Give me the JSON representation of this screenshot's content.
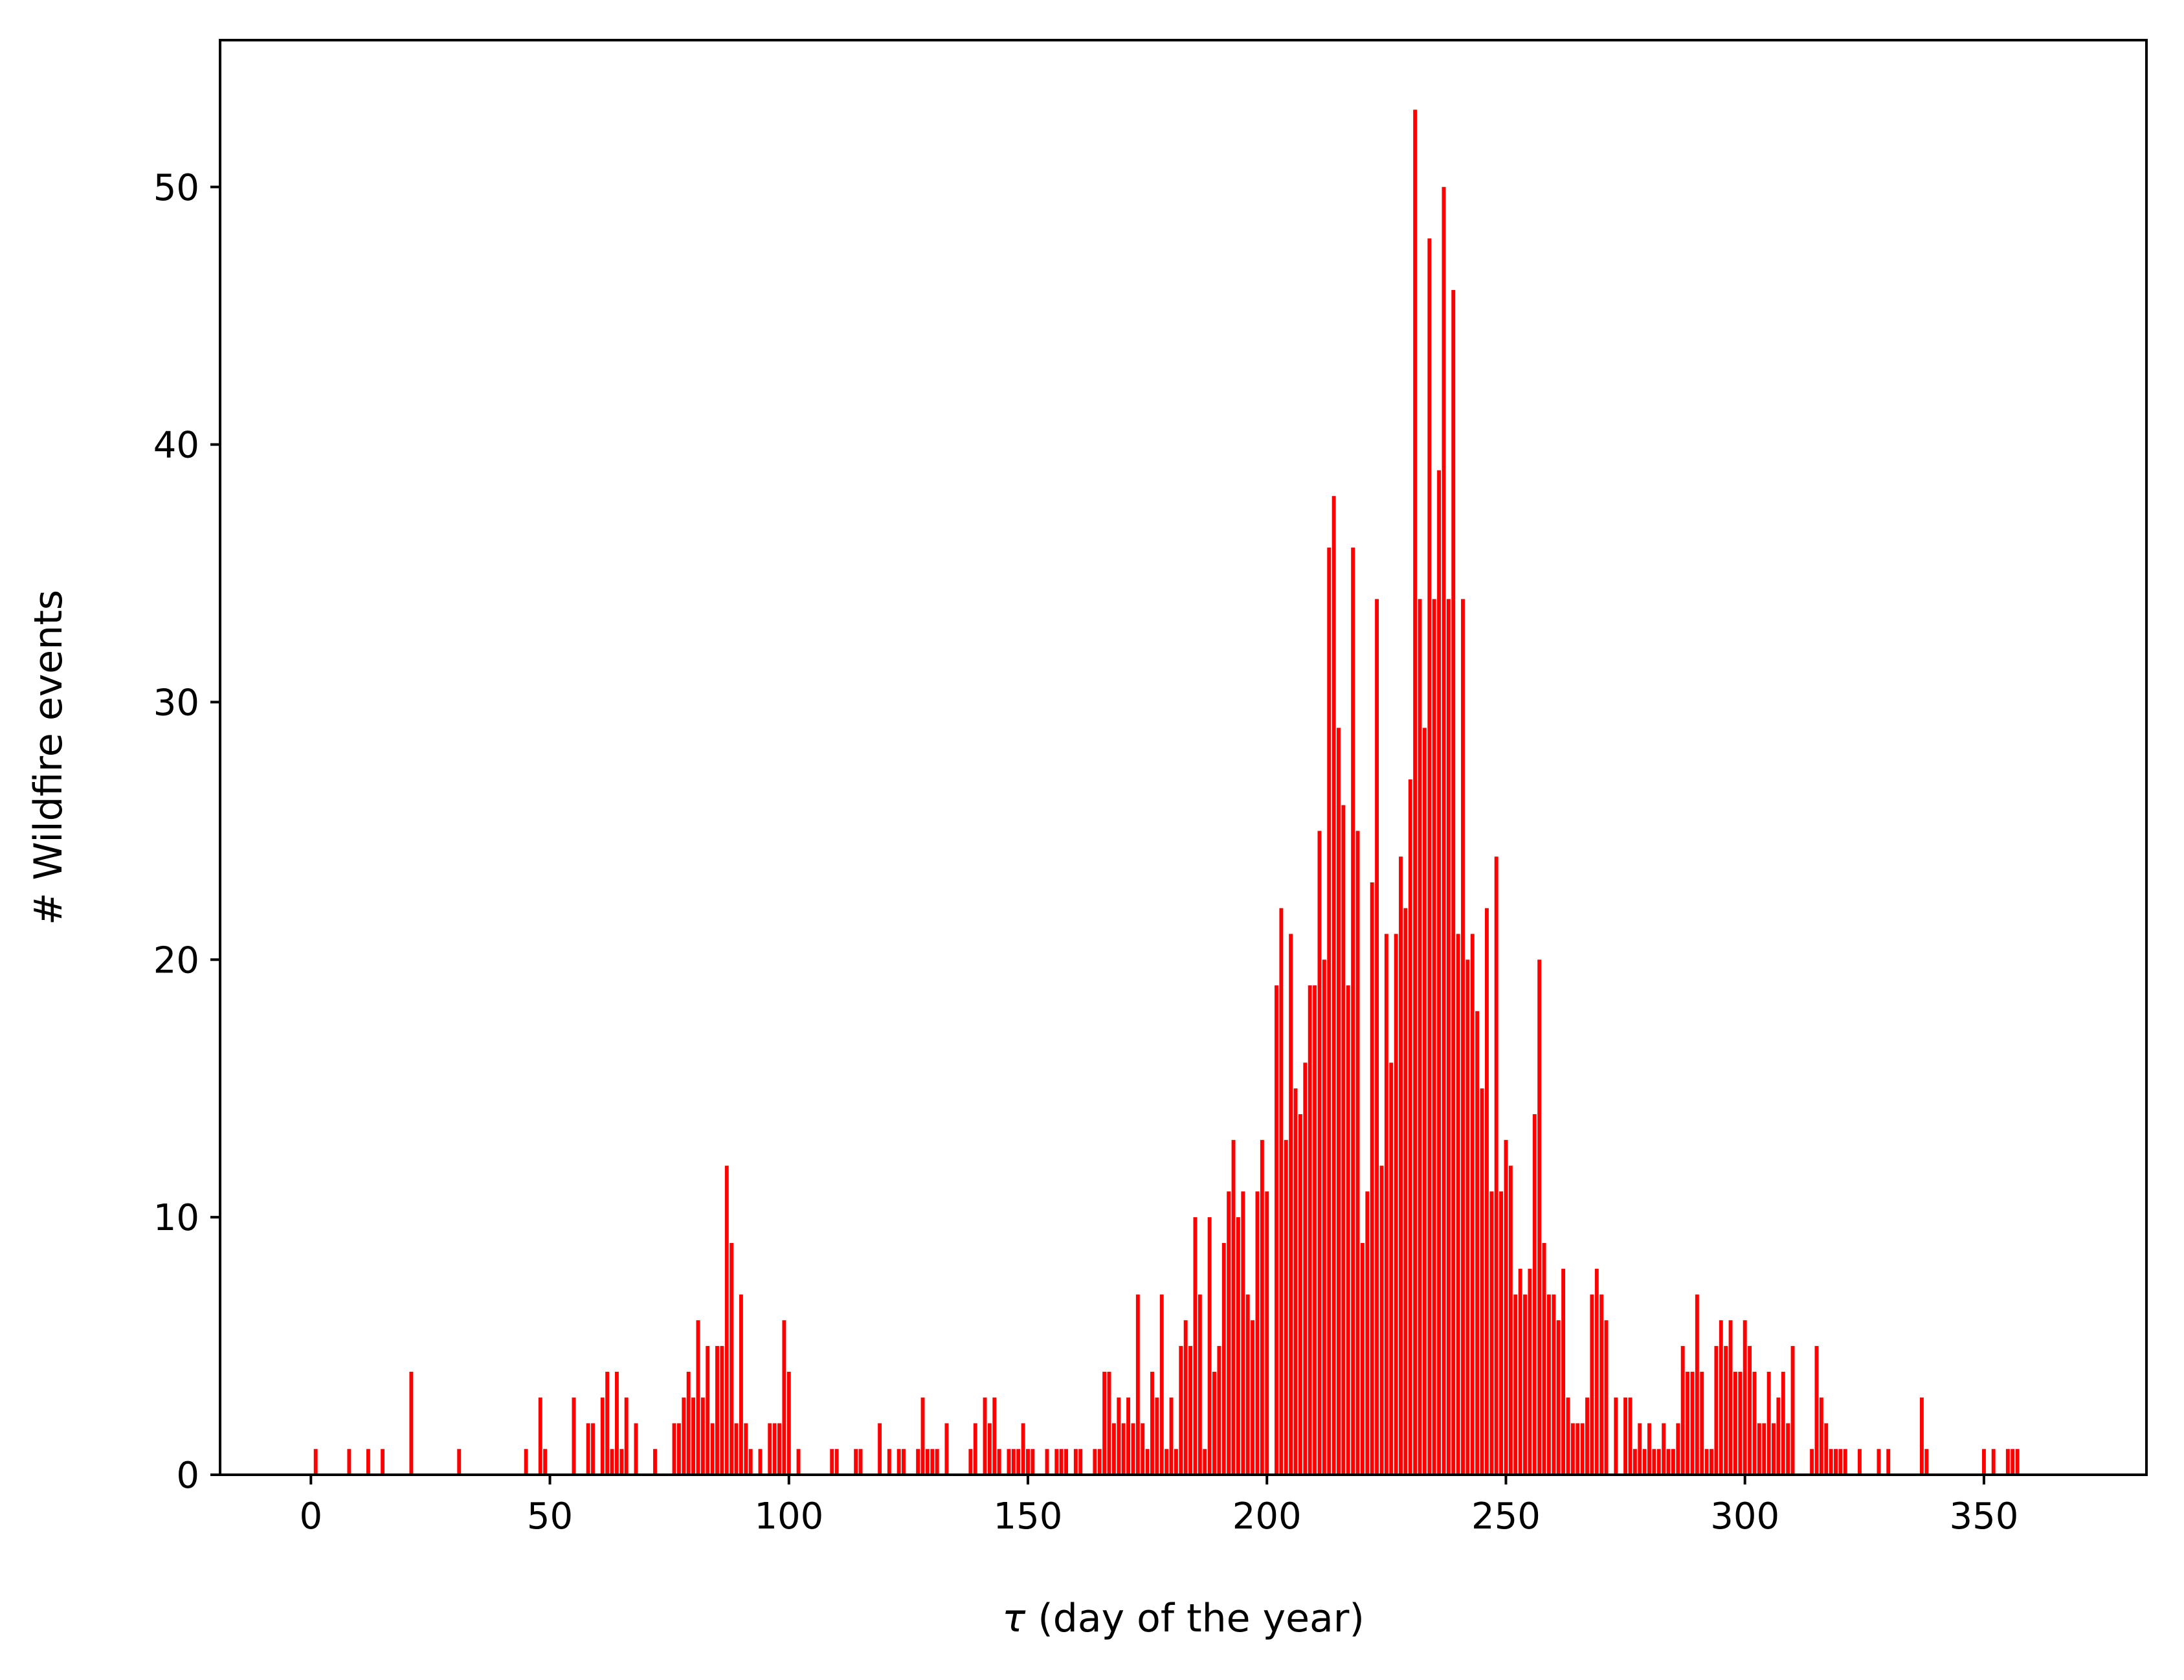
{
  "colors": {
    "bar": "#ff0000",
    "axes": "#000000",
    "background": "#ffffff"
  },
  "chart_data": {
    "type": "bar",
    "title": "",
    "xlabel_symbol": "τ",
    "xlabel_text": " (day of the year)",
    "ylabel": "# Wildfire events",
    "xlim": [
      -19,
      384
    ],
    "ylim": [
      0,
      55.7
    ],
    "xticks": [
      0,
      50,
      100,
      150,
      200,
      250,
      300,
      350
    ],
    "yticks": [
      0,
      10,
      20,
      30,
      40,
      50
    ],
    "grid": false,
    "legend": "none",
    "points": [
      [
        1,
        1
      ],
      [
        8,
        1
      ],
      [
        12,
        1
      ],
      [
        15,
        1
      ],
      [
        21,
        4
      ],
      [
        31,
        1
      ],
      [
        45,
        1
      ],
      [
        48,
        3
      ],
      [
        49,
        1
      ],
      [
        55,
        3
      ],
      [
        58,
        2
      ],
      [
        59,
        2
      ],
      [
        61,
        3
      ],
      [
        62,
        4
      ],
      [
        63,
        1
      ],
      [
        64,
        4
      ],
      [
        65,
        1
      ],
      [
        66,
        3
      ],
      [
        68,
        2
      ],
      [
        72,
        1
      ],
      [
        76,
        2
      ],
      [
        77,
        2
      ],
      [
        78,
        3
      ],
      [
        79,
        4
      ],
      [
        80,
        3
      ],
      [
        81,
        6
      ],
      [
        82,
        3
      ],
      [
        83,
        5
      ],
      [
        84,
        2
      ],
      [
        85,
        5
      ],
      [
        86,
        5
      ],
      [
        87,
        12
      ],
      [
        88,
        9
      ],
      [
        89,
        2
      ],
      [
        90,
        7
      ],
      [
        91,
        2
      ],
      [
        92,
        1
      ],
      [
        94,
        1
      ],
      [
        96,
        2
      ],
      [
        97,
        2
      ],
      [
        98,
        2
      ],
      [
        99,
        6
      ],
      [
        100,
        4
      ],
      [
        102,
        1
      ],
      [
        109,
        1
      ],
      [
        110,
        1
      ],
      [
        114,
        1
      ],
      [
        115,
        1
      ],
      [
        119,
        2
      ],
      [
        121,
        1
      ],
      [
        123,
        1
      ],
      [
        124,
        1
      ],
      [
        127,
        1
      ],
      [
        128,
        3
      ],
      [
        129,
        1
      ],
      [
        130,
        1
      ],
      [
        131,
        1
      ],
      [
        133,
        2
      ],
      [
        138,
        1
      ],
      [
        139,
        2
      ],
      [
        141,
        3
      ],
      [
        142,
        2
      ],
      [
        143,
        3
      ],
      [
        144,
        1
      ],
      [
        146,
        1
      ],
      [
        147,
        1
      ],
      [
        148,
        1
      ],
      [
        149,
        2
      ],
      [
        150,
        1
      ],
      [
        151,
        1
      ],
      [
        154,
        1
      ],
      [
        156,
        1
      ],
      [
        157,
        1
      ],
      [
        158,
        1
      ],
      [
        160,
        1
      ],
      [
        161,
        1
      ],
      [
        164,
        1
      ],
      [
        165,
        1
      ],
      [
        166,
        4
      ],
      [
        167,
        4
      ],
      [
        168,
        2
      ],
      [
        169,
        3
      ],
      [
        170,
        2
      ],
      [
        171,
        3
      ],
      [
        172,
        2
      ],
      [
        173,
        7
      ],
      [
        174,
        2
      ],
      [
        175,
        1
      ],
      [
        176,
        4
      ],
      [
        177,
        3
      ],
      [
        178,
        7
      ],
      [
        179,
        1
      ],
      [
        180,
        3
      ],
      [
        181,
        1
      ],
      [
        182,
        5
      ],
      [
        183,
        6
      ],
      [
        184,
        5
      ],
      [
        185,
        10
      ],
      [
        186,
        7
      ],
      [
        187,
        1
      ],
      [
        188,
        10
      ],
      [
        189,
        4
      ],
      [
        190,
        5
      ],
      [
        191,
        9
      ],
      [
        192,
        11
      ],
      [
        193,
        13
      ],
      [
        194,
        10
      ],
      [
        195,
        11
      ],
      [
        196,
        7
      ],
      [
        197,
        6
      ],
      [
        198,
        11
      ],
      [
        199,
        13
      ],
      [
        200,
        11
      ],
      [
        202,
        19
      ],
      [
        203,
        22
      ],
      [
        204,
        13
      ],
      [
        205,
        21
      ],
      [
        206,
        15
      ],
      [
        207,
        14
      ],
      [
        208,
        16
      ],
      [
        209,
        19
      ],
      [
        210,
        19
      ],
      [
        211,
        25
      ],
      [
        212,
        20
      ],
      [
        213,
        36
      ],
      [
        214,
        38
      ],
      [
        215,
        29
      ],
      [
        216,
        26
      ],
      [
        217,
        19
      ],
      [
        218,
        36
      ],
      [
        219,
        25
      ],
      [
        220,
        9
      ],
      [
        221,
        11
      ],
      [
        222,
        23
      ],
      [
        223,
        34
      ],
      [
        224,
        12
      ],
      [
        225,
        21
      ],
      [
        226,
        16
      ],
      [
        227,
        21
      ],
      [
        228,
        24
      ],
      [
        229,
        22
      ],
      [
        230,
        27
      ],
      [
        231,
        53
      ],
      [
        232,
        34
      ],
      [
        233,
        29
      ],
      [
        234,
        48
      ],
      [
        235,
        34
      ],
      [
        236,
        39
      ],
      [
        237,
        50
      ],
      [
        238,
        34
      ],
      [
        239,
        46
      ],
      [
        240,
        21
      ],
      [
        241,
        34
      ],
      [
        242,
        20
      ],
      [
        243,
        21
      ],
      [
        244,
        18
      ],
      [
        245,
        15
      ],
      [
        246,
        22
      ],
      [
        247,
        11
      ],
      [
        248,
        24
      ],
      [
        249,
        11
      ],
      [
        250,
        13
      ],
      [
        251,
        12
      ],
      [
        252,
        7
      ],
      [
        253,
        8
      ],
      [
        254,
        7
      ],
      [
        255,
        8
      ],
      [
        256,
        14
      ],
      [
        257,
        20
      ],
      [
        258,
        9
      ],
      [
        259,
        7
      ],
      [
        260,
        7
      ],
      [
        261,
        6
      ],
      [
        262,
        8
      ],
      [
        263,
        3
      ],
      [
        264,
        2
      ],
      [
        265,
        2
      ],
      [
        266,
        2
      ],
      [
        267,
        3
      ],
      [
        268,
        7
      ],
      [
        269,
        8
      ],
      [
        270,
        7
      ],
      [
        271,
        6
      ],
      [
        273,
        3
      ],
      [
        275,
        3
      ],
      [
        276,
        3
      ],
      [
        277,
        1
      ],
      [
        278,
        2
      ],
      [
        279,
        1
      ],
      [
        280,
        2
      ],
      [
        281,
        1
      ],
      [
        282,
        1
      ],
      [
        283,
        2
      ],
      [
        284,
        1
      ],
      [
        285,
        1
      ],
      [
        286,
        2
      ],
      [
        287,
        5
      ],
      [
        288,
        4
      ],
      [
        289,
        4
      ],
      [
        290,
        7
      ],
      [
        291,
        4
      ],
      [
        292,
        1
      ],
      [
        293,
        1
      ],
      [
        294,
        5
      ],
      [
        295,
        6
      ],
      [
        296,
        5
      ],
      [
        297,
        6
      ],
      [
        298,
        4
      ],
      [
        299,
        4
      ],
      [
        300,
        6
      ],
      [
        301,
        5
      ],
      [
        302,
        4
      ],
      [
        303,
        2
      ],
      [
        304,
        2
      ],
      [
        305,
        4
      ],
      [
        306,
        2
      ],
      [
        307,
        3
      ],
      [
        308,
        4
      ],
      [
        309,
        2
      ],
      [
        310,
        5
      ],
      [
        314,
        1
      ],
      [
        315,
        5
      ],
      [
        316,
        3
      ],
      [
        317,
        2
      ],
      [
        318,
        1
      ],
      [
        319,
        1
      ],
      [
        320,
        1
      ],
      [
        321,
        1
      ],
      [
        324,
        1
      ],
      [
        328,
        1
      ],
      [
        330,
        1
      ],
      [
        337,
        3
      ],
      [
        338,
        1
      ],
      [
        350,
        1
      ],
      [
        352,
        1
      ],
      [
        355,
        1
      ],
      [
        356,
        1
      ],
      [
        357,
        1
      ]
    ]
  }
}
